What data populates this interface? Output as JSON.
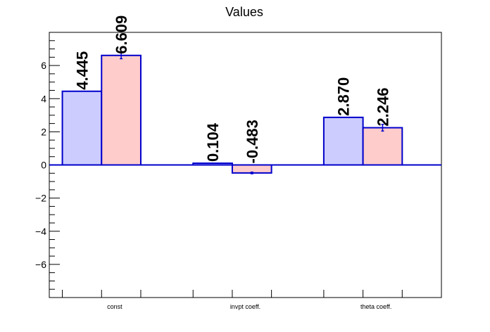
{
  "chart_data": {
    "type": "bar",
    "title": "Values",
    "categories": [
      "const",
      "invpt coeff.",
      "theta coeff."
    ],
    "series": [
      {
        "values": [
          4.445,
          0.104,
          2.87
        ],
        "errors": [
          0,
          0,
          0
        ],
        "labels": [
          "4.445",
          "0.104",
          "2.870"
        ],
        "fill": "#ccccff",
        "stroke": "#0000cc"
      },
      {
        "values": [
          6.609,
          -0.483,
          2.246
        ],
        "errors": [
          0.2,
          0.05,
          0.2
        ],
        "labels": [
          "6.609",
          "-0.483",
          "2.246"
        ],
        "fill": "#ffcccc",
        "stroke": "#0000cc"
      }
    ],
    "ylim": [
      -8,
      8
    ],
    "yticks": [
      -6,
      -4,
      -2,
      0,
      2,
      4,
      6
    ],
    "ytick_labels": [
      "−6",
      "−4",
      "−2",
      "0",
      "2",
      "4",
      "6"
    ],
    "xlabel": "",
    "ylabel": "",
    "grid": false,
    "baseline_color": "#0000cc"
  }
}
